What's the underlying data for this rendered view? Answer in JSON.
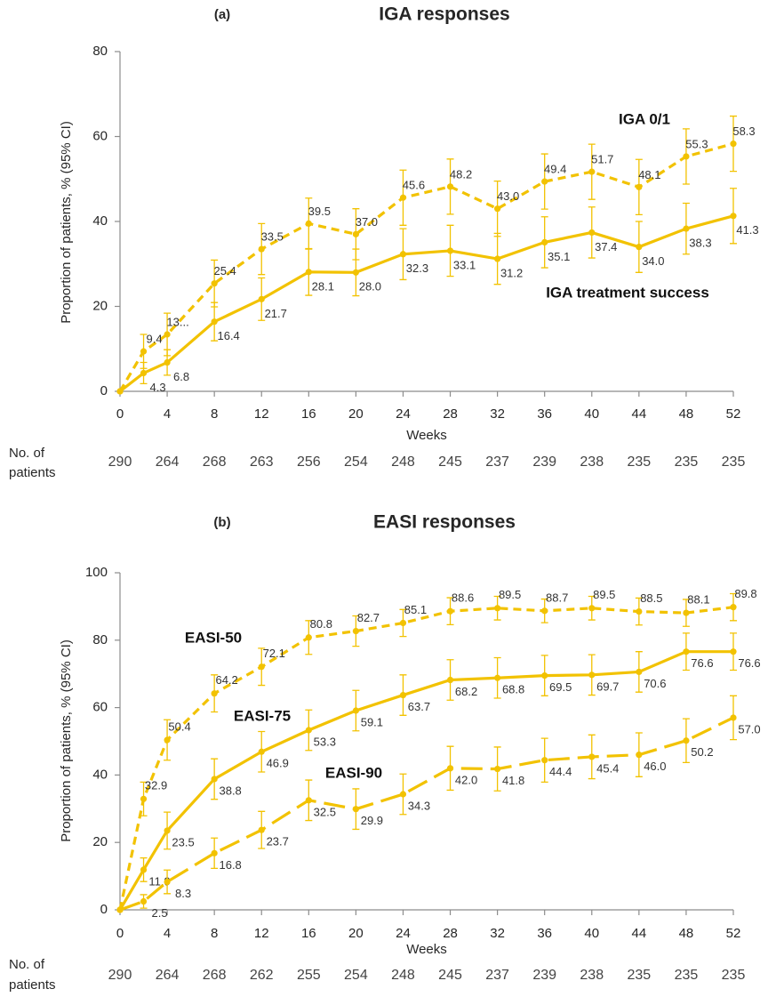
{
  "chart_data": [
    {
      "type": "line",
      "panel_label": "(a)",
      "title": "IGA responses",
      "xlabel": "Weeks",
      "ylabel": "Proportion of patients, % (95% CI)",
      "x": [
        0,
        2,
        4,
        8,
        12,
        16,
        20,
        24,
        28,
        32,
        36,
        40,
        44,
        48,
        52
      ],
      "xlim": [
        0,
        52
      ],
      "xticks": [
        0,
        4,
        8,
        12,
        16,
        20,
        24,
        28,
        32,
        36,
        40,
        44,
        48,
        52
      ],
      "ylim": [
        0,
        80
      ],
      "yticks": [
        0,
        20,
        40,
        60,
        80
      ],
      "series": [
        {
          "name": "IGA 0/1",
          "color": "#f2c200",
          "line_style": "dashed",
          "values": [
            0,
            9.4,
            13.4,
            25.4,
            33.5,
            39.5,
            37.0,
            45.6,
            48.2,
            43.0,
            49.4,
            51.7,
            48.1,
            55.3,
            58.3
          ],
          "value_labels": [
            null,
            "9.4",
            "13...",
            "25.4",
            "33.5",
            "39.5",
            "37.0",
            "45.6",
            "48.2",
            "43.0",
            "49.4",
            "51.7",
            "48.1",
            "55.3",
            "58.3"
          ],
          "errors": [
            null,
            4,
            5,
            5.5,
            6,
            6,
            6,
            6.5,
            6.5,
            6.5,
            6.5,
            6.5,
            6.5,
            6.5,
            6.5
          ]
        },
        {
          "name": "IGA treatment success",
          "color": "#f2c200",
          "line_style": "solid",
          "values": [
            0,
            4.3,
            6.8,
            16.4,
            21.7,
            28.1,
            28.0,
            32.3,
            33.1,
            31.2,
            35.1,
            37.4,
            34.0,
            38.3,
            41.3
          ],
          "value_labels": [
            null,
            "4.3",
            "6.8",
            "16.4",
            "21.7",
            "28.1",
            "28.0",
            "32.3",
            "33.1",
            "31.2",
            "35.1",
            "37.4",
            "34.0",
            "38.3",
            "41.3"
          ],
          "errors": [
            null,
            2.5,
            3,
            4.5,
            5,
            5.5,
            5.5,
            6,
            6,
            6,
            6,
            6,
            6,
            6,
            6.5
          ]
        }
      ],
      "patients": {
        "label": [
          "No. of",
          "patients"
        ],
        "counts": [
          290,
          264,
          268,
          263,
          256,
          254,
          248,
          245,
          237,
          239,
          238,
          235,
          235,
          235
        ]
      }
    },
    {
      "type": "line",
      "panel_label": "(b)",
      "title": "EASI responses",
      "xlabel": "Weeks",
      "ylabel": "Proportion of patients, % (95% CI)",
      "x": [
        0,
        2,
        4,
        8,
        12,
        16,
        20,
        24,
        28,
        32,
        36,
        40,
        44,
        48,
        52
      ],
      "xlim": [
        0,
        52
      ],
      "xticks": [
        0,
        4,
        8,
        12,
        16,
        20,
        24,
        28,
        32,
        36,
        40,
        44,
        48,
        52
      ],
      "ylim": [
        0,
        100
      ],
      "yticks": [
        0,
        20,
        40,
        60,
        80,
        100
      ],
      "series": [
        {
          "name": "EASI-50",
          "color": "#f2c200",
          "line_style": "dashed",
          "values": [
            0,
            32.9,
            50.4,
            64.2,
            72.1,
            80.8,
            82.7,
            85.1,
            88.6,
            89.5,
            88.7,
            89.5,
            88.5,
            88.1,
            89.8
          ],
          "value_labels": [
            null,
            "32.9",
            "50.4",
            "64.2",
            "72.1",
            "80.8",
            "82.7",
            "85.1",
            "88.6",
            "89.5",
            "88.7",
            "89.5",
            "88.5",
            "88.1",
            "89.8"
          ],
          "errors": [
            null,
            5,
            6,
            5.5,
            5.5,
            5,
            4.5,
            4,
            4,
            3.5,
            3.5,
            3.5,
            4,
            4,
            4
          ]
        },
        {
          "name": "EASI-75",
          "color": "#f2c200",
          "line_style": "solid",
          "values": [
            0,
            11.9,
            23.5,
            38.8,
            46.9,
            53.3,
            59.1,
            63.7,
            68.2,
            68.8,
            69.5,
            69.7,
            70.6,
            76.6,
            76.6
          ],
          "value_labels": [
            null,
            "11.9",
            "23.5",
            "38.8",
            "46.9",
            "53.3",
            "59.1",
            "63.7",
            "68.2",
            "68.8",
            "69.5",
            "69.7",
            "70.6",
            "76.6",
            "76.6"
          ],
          "errors": [
            null,
            3.5,
            5.5,
            6,
            6,
            6,
            6,
            6,
            6,
            6,
            6,
            6,
            6,
            5.5,
            5.5
          ]
        },
        {
          "name": "EASI-90",
          "color": "#f2c200",
          "line_style": "long-dashed",
          "values": [
            0,
            2.5,
            8.3,
            16.8,
            23.7,
            32.5,
            29.9,
            34.3,
            42.0,
            41.8,
            44.4,
            45.4,
            46.0,
            50.2,
            57.0
          ],
          "value_labels": [
            null,
            "2.5",
            "8.3",
            "16.8",
            "23.7",
            "32.5",
            "29.9",
            "34.3",
            "42.0",
            "41.8",
            "44.4",
            "45.4",
            "46.0",
            "50.2",
            "57.0"
          ],
          "errors": [
            null,
            2,
            3.5,
            4.5,
            5.5,
            6,
            6,
            6,
            6.5,
            6.5,
            6.5,
            6.5,
            6.5,
            6.5,
            6.5
          ]
        }
      ],
      "patients": {
        "label": [
          "No. of",
          "patients"
        ],
        "counts": [
          290,
          264,
          268,
          262,
          255,
          254,
          248,
          245,
          237,
          239,
          238,
          235,
          235,
          235
        ]
      }
    }
  ]
}
